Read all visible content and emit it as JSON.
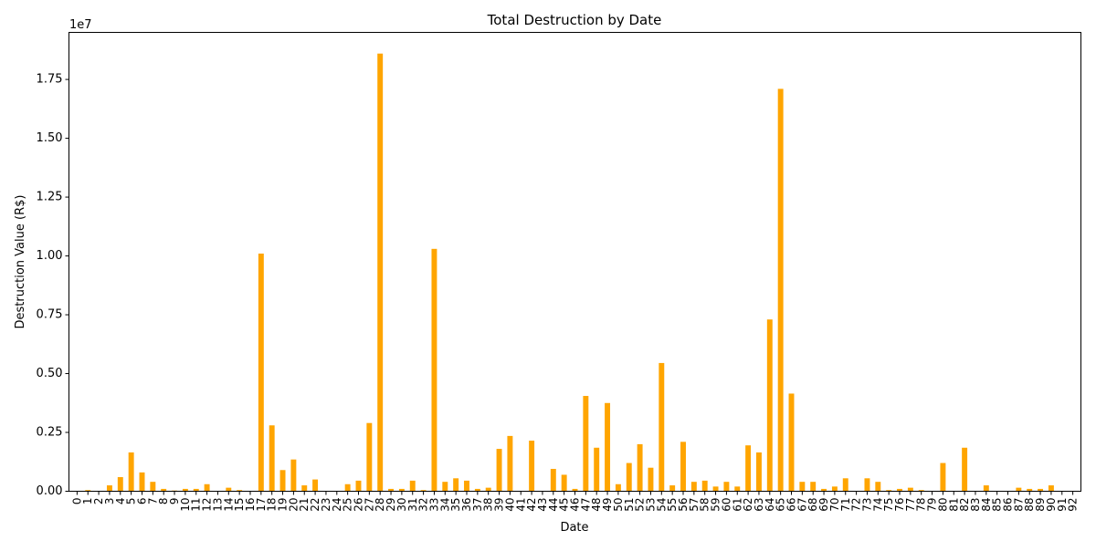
{
  "chart_data": {
    "type": "bar",
    "title": "Total Destruction by Date",
    "xlabel": "Date",
    "ylabel": "Destruction Value (R$)",
    "y_scale_note": "1e7",
    "ylim": [
      0,
      19500000
    ],
    "y_ticks": [
      0,
      2500000,
      5000000,
      7500000,
      10000000,
      12500000,
      15000000,
      17500000
    ],
    "y_tick_labels": [
      "0.00",
      "0.25",
      "0.50",
      "0.75",
      "1.00",
      "1.25",
      "1.50",
      "1.75"
    ],
    "bar_color": "#ffa500",
    "grid": false,
    "categories": [
      "0",
      "1",
      "2",
      "3",
      "4",
      "5",
      "6",
      "7",
      "8",
      "9",
      "10",
      "11",
      "12",
      "13",
      "14",
      "15",
      "16",
      "17",
      "18",
      "19",
      "20",
      "21",
      "22",
      "23",
      "24",
      "25",
      "26",
      "27",
      "28",
      "29",
      "30",
      "31",
      "32",
      "33",
      "34",
      "35",
      "36",
      "37",
      "38",
      "39",
      "40",
      "41",
      "42",
      "43",
      "44",
      "45",
      "46",
      "47",
      "48",
      "49",
      "50",
      "51",
      "52",
      "53",
      "54",
      "55",
      "56",
      "57",
      "58",
      "59",
      "60",
      "61",
      "62",
      "63",
      "64",
      "65",
      "66",
      "67",
      "68",
      "69",
      "70",
      "71",
      "72",
      "73",
      "74",
      "75",
      "76",
      "77",
      "78",
      "79",
      "80",
      "81",
      "82",
      "83",
      "84",
      "85",
      "86",
      "87",
      "88",
      "89",
      "90",
      "91",
      "92"
    ],
    "values": [
      0,
      50000,
      0,
      250000,
      600000,
      1650000,
      800000,
      400000,
      100000,
      30000,
      100000,
      100000,
      300000,
      0,
      150000,
      50000,
      0,
      10100000,
      2800000,
      900000,
      1350000,
      250000,
      500000,
      0,
      0,
      300000,
      450000,
      2900000,
      18600000,
      100000,
      100000,
      450000,
      50000,
      10300000,
      400000,
      550000,
      450000,
      100000,
      150000,
      1800000,
      2350000,
      0,
      2150000,
      0,
      950000,
      700000,
      100000,
      4050000,
      1850000,
      3750000,
      300000,
      1200000,
      2000000,
      1000000,
      5450000,
      250000,
      2100000,
      400000,
      450000,
      200000,
      400000,
      200000,
      1950000,
      1650000,
      7300000,
      17100000,
      4150000,
      400000,
      400000,
      100000,
      200000,
      550000,
      0,
      550000,
      400000,
      50000,
      100000,
      150000,
      50000,
      0,
      1200000,
      0,
      1850000,
      0,
      250000,
      0,
      0,
      150000,
      100000,
      100000,
      250000,
      0,
      0
    ]
  }
}
